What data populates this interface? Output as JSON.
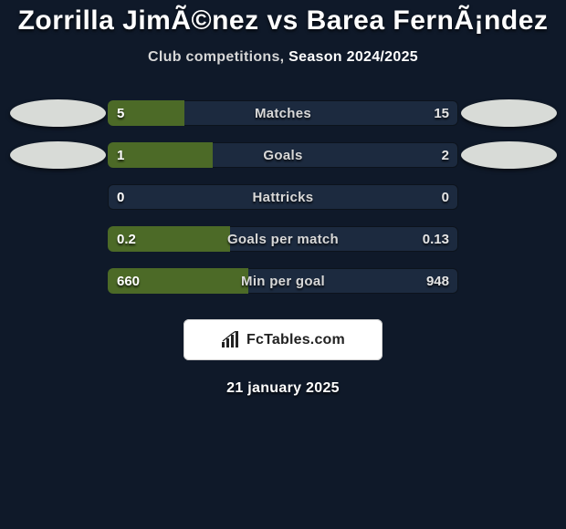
{
  "title": "Zorrilla JimÃ©nez vs Barea FernÃ¡ndez",
  "subtitle_prefix": "Club competitions, ",
  "subtitle_season": "Season 2024/2025",
  "colors": {
    "background": "#0f1929",
    "bar_bg": "#1c2a3f",
    "bar_fill": "#4c6a27",
    "ellipse_left": "#d8dbd7",
    "ellipse_right": "#d8dbd7",
    "text_white": "#ffffff",
    "text_gray": "#d7d7d7"
  },
  "brand": {
    "text": "FcTables.com"
  },
  "date": "21 january 2025",
  "rows": [
    {
      "label": "Matches",
      "left_value": "5",
      "right_value": "15",
      "fill_pct": 22,
      "show_left_ellipse": true,
      "show_right_ellipse": true
    },
    {
      "label": "Goals",
      "left_value": "1",
      "right_value": "2",
      "fill_pct": 30,
      "show_left_ellipse": true,
      "show_right_ellipse": true
    },
    {
      "label": "Hattricks",
      "left_value": "0",
      "right_value": "0",
      "fill_pct": 0,
      "show_left_ellipse": false,
      "show_right_ellipse": false
    },
    {
      "label": "Goals per match",
      "left_value": "0.2",
      "right_value": "0.13",
      "fill_pct": 35,
      "show_left_ellipse": false,
      "show_right_ellipse": false
    },
    {
      "label": "Min per goal",
      "left_value": "660",
      "right_value": "948",
      "fill_pct": 40,
      "show_left_ellipse": false,
      "show_right_ellipse": false
    }
  ]
}
